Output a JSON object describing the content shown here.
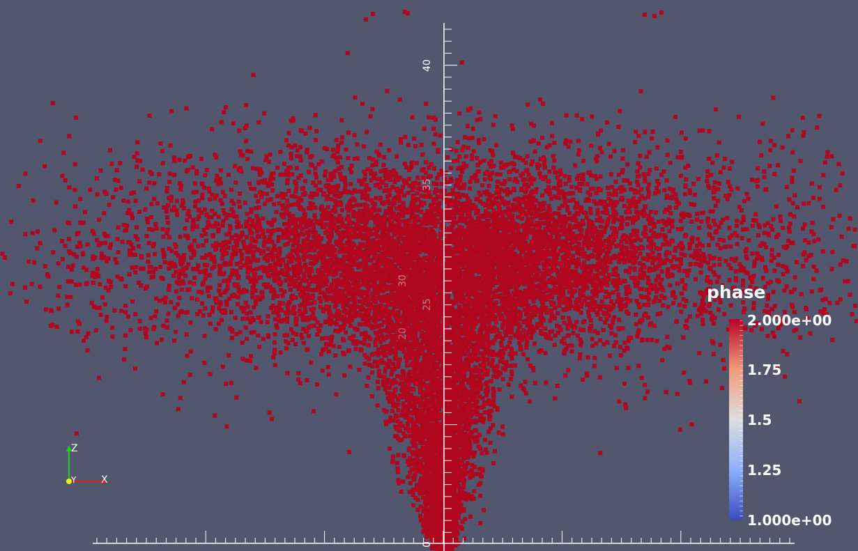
{
  "viewport": {
    "background_color": "#52576e",
    "point_color": "#b0071f"
  },
  "z_axis": {
    "tick_labels": [
      "40",
      "35",
      "30",
      "25",
      "20"
    ]
  },
  "x_axis": {
    "tick_labels": [
      "0"
    ]
  },
  "orientation_axes": {
    "z_label": "Z",
    "y_label": "Y",
    "x_label": "X",
    "z_color": "#22cc22",
    "x_color": "#dd2222",
    "y_color": "#eeee22"
  },
  "legend": {
    "title": "phase",
    "range": [
      1.0,
      2.0
    ],
    "labels": [
      "2.000e+00",
      "1.75",
      "1.5",
      "1.25",
      "1.000e+00"
    ],
    "colormap": [
      "#3b4cc0",
      "#8db0fe",
      "#dddddd",
      "#f49a7b",
      "#b40426"
    ]
  }
}
